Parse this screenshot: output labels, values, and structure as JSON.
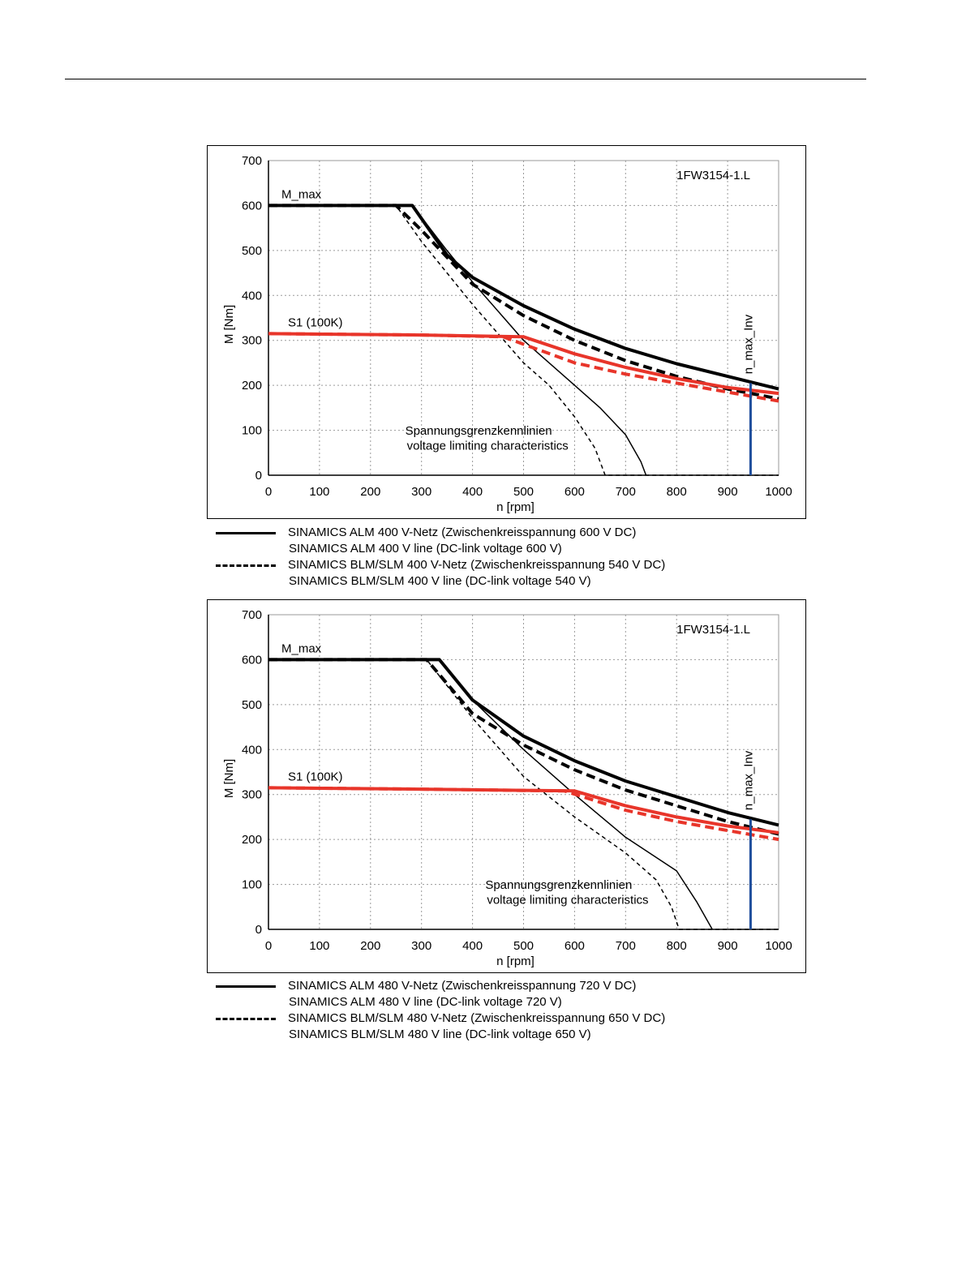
{
  "chart_data": [
    {
      "type": "line",
      "model": "1FW3154-1.L",
      "xlabel": "n [rpm]",
      "ylabel": "M [Nm]",
      "xlim": [
        0,
        1000
      ],
      "ylim": [
        0,
        700
      ],
      "xticks": [
        "0",
        "100",
        "200",
        "300",
        "400",
        "500",
        "600",
        "700",
        "800",
        "900",
        "1000"
      ],
      "yticks": [
        "0",
        "100",
        "200",
        "300",
        "400",
        "500",
        "600",
        "700"
      ],
      "grid": true,
      "labels": {
        "mmax": "M_max",
        "s1": "S1 (100K)",
        "nmax": "n_max_Inv",
        "volt_de": "Spannungsgrenzkennlinien",
        "volt_en": "voltage limiting characteristics"
      },
      "nmax_x": 945,
      "nmax_top": 205,
      "series": [
        {
          "color": "#000000",
          "style": "solid",
          "width": 4,
          "x": [
            0,
            282,
            350,
            400,
            500,
            600,
            700,
            800,
            900,
            1000
          ],
          "y": [
            600,
            600,
            490,
            440,
            377,
            325,
            282,
            248,
            220,
            192
          ]
        },
        {
          "color": "#000000",
          "style": "dashed",
          "width": 4,
          "x": [
            0,
            250,
            300,
            400,
            500,
            600,
            700,
            800,
            900,
            1000
          ],
          "y": [
            600,
            600,
            545,
            425,
            355,
            300,
            255,
            220,
            192,
            170
          ]
        },
        {
          "color": "#000000",
          "style": "solid",
          "width": 1.5,
          "x": [
            0,
            282,
            350,
            400,
            500,
            600,
            650,
            700,
            730,
            740
          ],
          "y": [
            600,
            600,
            500,
            430,
            300,
            200,
            150,
            90,
            30,
            0
          ]
        },
        {
          "color": "#000000",
          "style": "dashed",
          "width": 1.5,
          "x": [
            0,
            250,
            300,
            400,
            500,
            550,
            600,
            640,
            660,
            1000
          ],
          "y": [
            600,
            600,
            520,
            380,
            250,
            200,
            130,
            60,
            0,
            0
          ]
        },
        {
          "color": "#e8352a",
          "style": "solid",
          "width": 4,
          "x": [
            0,
            300,
            500,
            600,
            700,
            800,
            900,
            1000
          ],
          "y": [
            315,
            312,
            308,
            270,
            240,
            215,
            195,
            182
          ]
        },
        {
          "color": "#e8352a",
          "style": "dashed",
          "width": 4,
          "x": [
            0,
            300,
            460,
            600,
            700,
            800,
            900,
            1000
          ],
          "y": [
            315,
            312,
            308,
            250,
            225,
            205,
            185,
            165
          ]
        }
      ],
      "legend": [
        {
          "style": "solid",
          "text": "SINAMICS ALM  400 V-Netz (Zwischenkreisspannung 600 V DC)",
          "text2": "SINAMICS ALM  400 V line (DC-link voltage 600 V)"
        },
        {
          "style": "dashed",
          "text": "SINAMICS BLM/SLM  400 V-Netz (Zwischenkreisspannung 540 V DC)",
          "text2": "SINAMICS BLM/SLM  400 V line (DC-link voltage 540 V)"
        }
      ]
    },
    {
      "type": "line",
      "model": "1FW3154-1.L",
      "xlabel": "n [rpm]",
      "ylabel": "M [Nm]",
      "xlim": [
        0,
        1000
      ],
      "ylim": [
        0,
        700
      ],
      "xticks": [
        "0",
        "100",
        "200",
        "300",
        "400",
        "500",
        "600",
        "700",
        "800",
        "900",
        "1000"
      ],
      "yticks": [
        "0",
        "100",
        "200",
        "300",
        "400",
        "500",
        "600",
        "700"
      ],
      "grid": true,
      "labels": {
        "mmax": "M_max",
        "s1": "S1 (100K)",
        "nmax": "n_max_Inv",
        "volt_de": "Spannungsgrenzkennlinien",
        "volt_en": "voltage limiting characteristics"
      },
      "nmax_x": 945,
      "nmax_top": 245,
      "series": [
        {
          "color": "#000000",
          "style": "solid",
          "width": 4,
          "x": [
            0,
            335,
            400,
            500,
            600,
            700,
            800,
            900,
            1000
          ],
          "y": [
            600,
            600,
            510,
            430,
            375,
            330,
            295,
            260,
            232
          ]
        },
        {
          "color": "#000000",
          "style": "dashed",
          "width": 4,
          "x": [
            0,
            310,
            400,
            500,
            600,
            700,
            800,
            900,
            1000
          ],
          "y": [
            600,
            600,
            480,
            410,
            355,
            310,
            275,
            240,
            212
          ]
        },
        {
          "color": "#000000",
          "style": "solid",
          "width": 1.5,
          "x": [
            0,
            335,
            400,
            500,
            600,
            700,
            800,
            840,
            870
          ],
          "y": [
            600,
            600,
            510,
            400,
            300,
            205,
            130,
            60,
            0
          ]
        },
        {
          "color": "#000000",
          "style": "dashed",
          "width": 1.5,
          "x": [
            0,
            310,
            400,
            500,
            600,
            700,
            760,
            790,
            805,
            1000
          ],
          "y": [
            600,
            600,
            470,
            340,
            250,
            170,
            110,
            50,
            0,
            0
          ]
        },
        {
          "color": "#e8352a",
          "style": "solid",
          "width": 4,
          "x": [
            0,
            300,
            600,
            700,
            800,
            900,
            1000
          ],
          "y": [
            315,
            312,
            308,
            275,
            250,
            230,
            215
          ]
        },
        {
          "color": "#e8352a",
          "style": "dashed",
          "width": 4,
          "x": [
            0,
            300,
            580,
            700,
            800,
            900,
            1000
          ],
          "y": [
            315,
            312,
            308,
            265,
            240,
            220,
            200
          ]
        }
      ],
      "legend": [
        {
          "style": "solid",
          "text": "SINAMICS ALM  480 V-Netz (Zwischenkreisspannung 720 V DC)",
          "text2": "SINAMICS ALM  480 V line (DC-link voltage 720 V)"
        },
        {
          "style": "dashed",
          "text": "SINAMICS BLM/SLM  480 V-Netz (Zwischenkreisspannung 650 V DC)",
          "text2": "SINAMICS BLM/SLM  480 V line (DC-link voltage 650 V)"
        }
      ]
    }
  ]
}
